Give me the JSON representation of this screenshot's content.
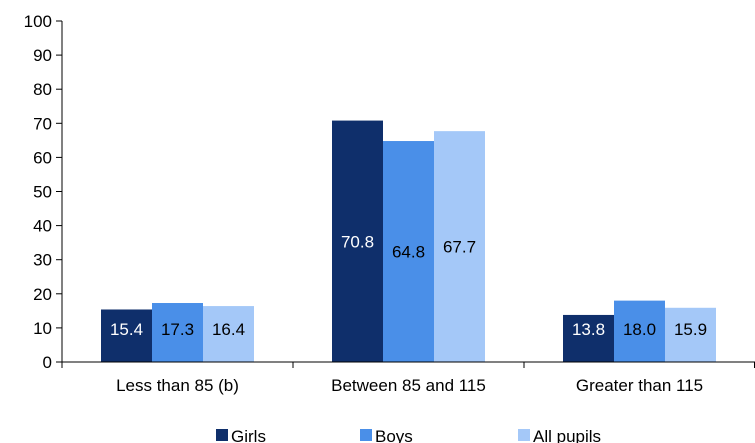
{
  "chart_data": {
    "type": "bar",
    "title": "",
    "xlabel": "",
    "ylabel": "",
    "ylim": [
      0,
      100
    ],
    "yticks": [
      0,
      10,
      20,
      30,
      40,
      50,
      60,
      70,
      80,
      90,
      100
    ],
    "categories": [
      "Less than 85 (b)",
      "Between 85 and 115",
      "Greater than 115"
    ],
    "series": [
      {
        "name": "Girls",
        "color": "#0f2f6b",
        "label_color": "#ffffff",
        "values": [
          15.4,
          70.8,
          13.8
        ]
      },
      {
        "name": "Boys",
        "color": "#4a8fe8",
        "label_color": "#000000",
        "values": [
          17.3,
          64.8,
          18.0
        ]
      },
      {
        "name": "All pupils",
        "color": "#a4c8f8",
        "label_color": "#000000",
        "values": [
          16.4,
          67.7,
          15.9
        ]
      }
    ],
    "data_labels": [
      [
        "15.4",
        "70.8",
        "13.8"
      ],
      [
        "17.3",
        "64.8",
        "18.0"
      ],
      [
        "16.4",
        "67.7",
        "15.9"
      ]
    ],
    "legend_position": "bottom",
    "grid": false
  }
}
